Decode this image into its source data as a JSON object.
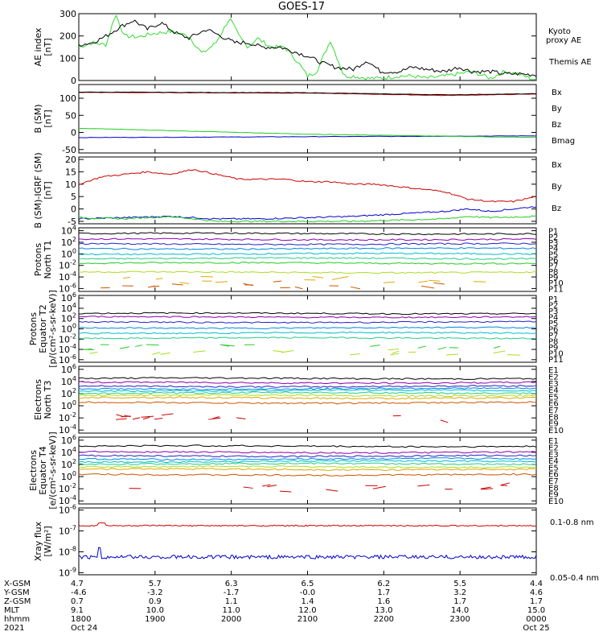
{
  "title": "GOES-17",
  "chart_data": [
    {
      "type": "line",
      "panel": "ae_index",
      "ylabel": [
        "AE index",
        "[nT]"
      ],
      "yticks": [
        "300",
        "200",
        "100",
        "0"
      ],
      "ylim": [
        0,
        300
      ],
      "series": [
        {
          "name": "Kyoto proxy AE",
          "color": "#33dd33",
          "x": [
            0,
            0.03,
            0.06,
            0.08,
            0.1,
            0.13,
            0.16,
            0.2,
            0.24,
            0.27,
            0.3,
            0.33,
            0.35,
            0.37,
            0.39,
            0.42,
            0.45,
            0.48,
            0.5,
            0.52,
            0.55,
            0.58,
            0.6,
            0.63,
            0.66,
            0.7,
            0.73,
            0.76,
            0.8,
            0.83,
            0.86,
            0.9,
            0.93,
            0.96,
            1
          ],
          "y": [
            150,
            170,
            160,
            300,
            200,
            195,
            210,
            220,
            200,
            120,
            170,
            280,
            200,
            150,
            190,
            150,
            150,
            80,
            20,
            40,
            180,
            20,
            20,
            10,
            10,
            20,
            20,
            10,
            20,
            30,
            40,
            10,
            40,
            30,
            0
          ]
        },
        {
          "name": "Themis AE",
          "color": "#000000",
          "x": [
            0,
            0.03,
            0.06,
            0.09,
            0.12,
            0.15,
            0.18,
            0.21,
            0.24,
            0.28,
            0.31,
            0.34,
            0.37,
            0.4,
            0.44,
            0.47,
            0.5,
            0.53,
            0.56,
            0.6,
            0.63,
            0.66,
            0.7,
            0.73,
            0.76,
            0.8,
            0.83,
            0.86,
            0.9,
            0.93,
            0.96,
            1
          ],
          "y": [
            160,
            170,
            200,
            240,
            270,
            230,
            260,
            215,
            190,
            230,
            200,
            170,
            170,
            150,
            150,
            130,
            110,
            80,
            60,
            50,
            90,
            40,
            40,
            60,
            50,
            40,
            60,
            40,
            40,
            30,
            30,
            25
          ]
        }
      ]
    },
    {
      "type": "line",
      "panel": "b_sm",
      "ylabel": [
        "B (SM)",
        "[nT]"
      ],
      "yticks": [
        "100",
        "50",
        "0",
        "-50"
      ],
      "ylim": [
        -60,
        140
      ],
      "series": [
        {
          "name": "Bx",
          "color": "#0000cc",
          "x": [
            0,
            1
          ],
          "y": [
            -15,
            -10
          ]
        },
        {
          "name": "By",
          "color": "#22cc22",
          "x": [
            0,
            0.5,
            1
          ],
          "y": [
            12,
            -5,
            -15
          ]
        },
        {
          "name": "Bz",
          "color": "#cc0000",
          "x": [
            0,
            0.5,
            0.8,
            1
          ],
          "y": [
            117,
            115,
            108,
            112
          ]
        },
        {
          "name": "Bmag",
          "color": "#000000",
          "x": [
            0,
            0.5,
            0.8,
            1
          ],
          "y": [
            118,
            116,
            110,
            113
          ]
        }
      ]
    },
    {
      "type": "line",
      "panel": "b_minus_igrf",
      "ylabel": [
        "B (SM)-IGRF (SM)",
        "[nT]"
      ],
      "yticks": [
        "20",
        "15",
        "10",
        "5",
        "0",
        "-5"
      ],
      "ylim": [
        -6,
        21
      ],
      "series": [
        {
          "name": "Bx",
          "color": "#0000cc",
          "x": [
            0,
            0.1,
            0.2,
            0.3,
            0.4,
            0.5,
            0.6,
            0.7,
            0.8,
            0.85,
            0.9,
            1
          ],
          "y": [
            -4,
            -3.5,
            -3,
            -4,
            -4,
            -3.5,
            -3,
            -2,
            -1,
            0,
            -1,
            1
          ]
        },
        {
          "name": "By",
          "color": "#22cc22",
          "x": [
            0,
            0.1,
            0.2,
            0.3,
            0.4,
            0.5,
            0.6,
            0.7,
            0.8,
            0.85,
            0.9,
            1
          ],
          "y": [
            -3.5,
            -4,
            -3,
            -5,
            -5,
            -5,
            -5,
            -4.5,
            -4,
            -3,
            -3.5,
            -3
          ]
        },
        {
          "name": "Bz",
          "color": "#cc0000",
          "x": [
            0,
            0.05,
            0.1,
            0.15,
            0.2,
            0.25,
            0.3,
            0.35,
            0.4,
            0.45,
            0.5,
            0.55,
            0.6,
            0.65,
            0.7,
            0.75,
            0.8,
            0.85,
            0.9,
            0.95,
            1
          ],
          "y": [
            10,
            13,
            14,
            15,
            14,
            16,
            14,
            12,
            12,
            12,
            11,
            11,
            10,
            10,
            9,
            8,
            7,
            4,
            3,
            3,
            5
          ]
        }
      ]
    },
    {
      "type": "line",
      "panel": "protons_north_t1",
      "ylabel": [
        "Protons",
        "North T1"
      ],
      "yticks": [
        "10^4",
        "10^2",
        "10^0",
        "10^-2",
        "10^-4",
        "10^-6"
      ],
      "log_levels": [
        3.5,
        2.5,
        1.7,
        0.9,
        0,
        -0.8,
        -1.6,
        -3.2,
        -4.5,
        -5.3
      ],
      "channel_labels": [
        "P1",
        "P2",
        "P3",
        "P4",
        "P5",
        "P6",
        "P7",
        "P8",
        "P9",
        "P10",
        "P11"
      ],
      "channel_colors": [
        "#000000",
        "#8800aa",
        "#2222cc",
        "#0088dd",
        "#00bbcc",
        "#22cc88",
        "#22cc22",
        "#aadd22",
        "#ddaa00",
        "#cc5500",
        "#cc0000"
      ]
    },
    {
      "type": "line",
      "panel": "protons_equator_t2",
      "ylabel": [
        "Protons",
        "Equator T2",
        "[p/(cm^2-s-sr-keV)]"
      ],
      "yticks": [
        "10^6",
        "10^4",
        "10^2",
        "10^0",
        "10^-2",
        "10^-4",
        "10^-6"
      ],
      "log_levels": [
        3,
        2.3,
        1.3,
        0.2,
        -0.8,
        -1.8,
        -3.5,
        -4.5
      ],
      "channel_labels": [
        "P1",
        "P2",
        "P3",
        "P4",
        "P5",
        "P6",
        "P7",
        "P8",
        "P9",
        "P10",
        "P11"
      ],
      "channel_colors": [
        "#000000",
        "#8800aa",
        "#2222cc",
        "#0088dd",
        "#00bbcc",
        "#22cc88",
        "#22cc22",
        "#aadd22",
        "#ddaa00",
        "#cc5500",
        "#cc0000"
      ]
    },
    {
      "type": "line",
      "panel": "electrons_north_t3",
      "ylabel": [
        "Electrons",
        "North T3"
      ],
      "yticks": [
        "10^6",
        "10^4",
        "10^2",
        "10^0",
        "10^-2",
        "10^-4"
      ],
      "log_levels": [
        4.5,
        3.8,
        3.2,
        2.8,
        2.5,
        2.1,
        1.7,
        1.3,
        0.5,
        -2
      ],
      "channel_labels": [
        "E1",
        "E2",
        "E3",
        "E4",
        "E5",
        "E6",
        "E7",
        "E8",
        "E9",
        "E10"
      ],
      "channel_colors": [
        "#000000",
        "#8800aa",
        "#2222cc",
        "#0088dd",
        "#00bbcc",
        "#22cc88",
        "#aadd22",
        "#ddaa00",
        "#cc5500",
        "#cc0000"
      ]
    },
    {
      "type": "line",
      "panel": "electrons_equator_t4",
      "ylabel": [
        "Electrons",
        "Equator T4",
        "[e/(cm^2-s-sr-keV)]"
      ],
      "yticks": [
        "10^6",
        "10^4",
        "10^2",
        "10^0",
        "10^-2",
        "10^-4"
      ],
      "log_levels": [
        5,
        4,
        3.4,
        2.9,
        2.5,
        2.1,
        1.6,
        1.2,
        0.3,
        -2
      ],
      "channel_labels": [
        "E1",
        "E2",
        "E3",
        "E4",
        "E5",
        "E6",
        "E7",
        "E8",
        "E9",
        "E10"
      ],
      "channel_colors": [
        "#000000",
        "#8800aa",
        "#2222cc",
        "#0088dd",
        "#00bbcc",
        "#22cc88",
        "#aadd22",
        "#ddaa00",
        "#cc5500",
        "#cc0000"
      ]
    },
    {
      "type": "line",
      "panel": "xray_flux",
      "ylabel": [
        "Xray flux",
        "[W/m^2]"
      ],
      "yticks": [
        "10^-6",
        "10^-7",
        "10^-8",
        "10^-9"
      ],
      "series": [
        {
          "name": "0.1-0.8 nm",
          "color": "#cc0000",
          "log_level": -6.75
        },
        {
          "name": "0.05-0.4 nm",
          "color": "#0000cc",
          "log_level": -8.25
        }
      ]
    }
  ],
  "legends": {
    "ae": [
      "Kyoto",
      "proxy AE",
      "Themis AE"
    ],
    "b_sm": [
      "Bx",
      "By",
      "Bz",
      "Bmag"
    ],
    "b_igrf": [
      "Bx",
      "By",
      "Bz"
    ],
    "xray": [
      "0.1-0.8 nm",
      "0.05-0.4 nm"
    ]
  },
  "footer": {
    "row_labels": [
      "X-GSM",
      "Y-GSM",
      "Z-GSM",
      "MLT",
      "hhmm",
      "2021"
    ],
    "columns": [
      {
        "x": "4.7",
        "y": "-4.6",
        "z": "0.7",
        "mlt": "9.1",
        "hhmm": "1800",
        "date": "Oct 24"
      },
      {
        "x": "5.7",
        "y": "-3.2",
        "z": "0.9",
        "mlt": "10.0",
        "hhmm": "1900",
        "date": ""
      },
      {
        "x": "6.3",
        "y": "-1.7",
        "z": "1.1",
        "mlt": "11.0",
        "hhmm": "2000",
        "date": ""
      },
      {
        "x": "6.5",
        "y": "-0.0",
        "z": "1.4",
        "mlt": "12.0",
        "hhmm": "2100",
        "date": ""
      },
      {
        "x": "6.2",
        "y": "1.7",
        "z": "1.6",
        "mlt": "13.0",
        "hhmm": "2200",
        "date": ""
      },
      {
        "x": "5.5",
        "y": "3.2",
        "z": "1.7",
        "mlt": "14.0",
        "hhmm": "2300",
        "date": ""
      },
      {
        "x": "4.4",
        "y": "4.6",
        "z": "1.7",
        "mlt": "15.0",
        "hhmm": "0000",
        "date": "Oct 25"
      }
    ]
  }
}
